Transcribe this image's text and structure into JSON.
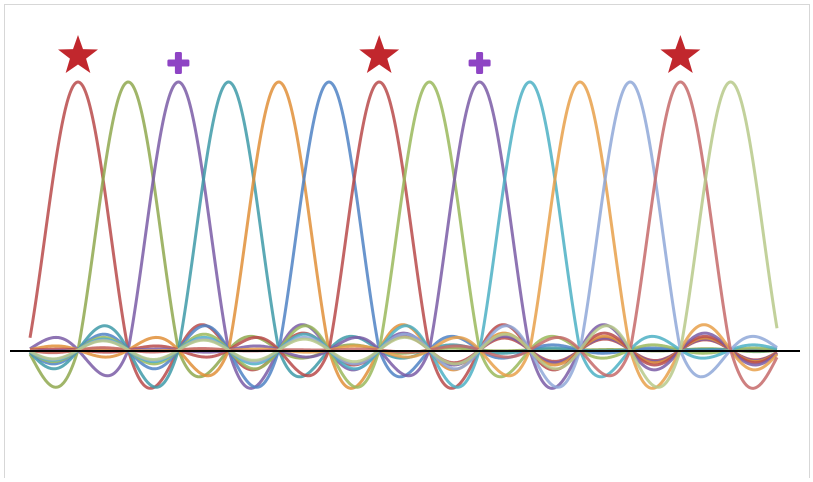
{
  "chart_data": {
    "type": "line",
    "title": "",
    "xlabel": "",
    "ylabel": "",
    "grid": false,
    "legend": "none",
    "baseline_color": "#000000",
    "x": [
      0,
      14
    ],
    "ylim": [
      -0.24,
      1.0
    ],
    "peak_value": 1.0,
    "ripple_amplitude": 0.06,
    "trough_value": -0.22,
    "series": [
      {
        "peak": 1,
        "color": "#b94a4a",
        "ripple": 0.06
      },
      {
        "peak": 2,
        "color": "#8fa84f",
        "ripple": 0.05
      },
      {
        "peak": 3,
        "color": "#7a5ca6",
        "ripple": 0.06
      },
      {
        "peak": 4,
        "color": "#3e9aa8",
        "ripple": 0.05
      },
      {
        "peak": 5,
        "color": "#e08f38",
        "ripple": 0.06
      },
      {
        "peak": 6,
        "color": "#4f82c4",
        "ripple": 0.05
      },
      {
        "peak": 7,
        "color": "#b94a4a",
        "ripple": 0.06
      },
      {
        "peak": 8,
        "color": "#9ab85c",
        "ripple": 0.05
      },
      {
        "peak": 9,
        "color": "#7a5ca6",
        "ripple": 0.06
      },
      {
        "peak": 10,
        "color": "#4cb0c4",
        "ripple": 0.05
      },
      {
        "peak": 11,
        "color": "#e8a04a",
        "ripple": 0.06
      },
      {
        "peak": 12,
        "color": "#8fa8d8",
        "ripple": 0.05
      },
      {
        "peak": 13,
        "color": "#c66a6a",
        "ripple": 0.06
      },
      {
        "peak": 14,
        "color": "#b7c98a",
        "ripple": 0.05
      }
    ],
    "markers": [
      {
        "peak": 1,
        "shape": "star",
        "color": "#c1272d"
      },
      {
        "peak": 3,
        "shape": "plus",
        "color": "#8e44c4"
      },
      {
        "peak": 7,
        "shape": "star",
        "color": "#c1272d"
      },
      {
        "peak": 9,
        "shape": "plus",
        "color": "#8e44c4"
      },
      {
        "peak": 13,
        "shape": "star",
        "color": "#c1272d"
      }
    ]
  }
}
